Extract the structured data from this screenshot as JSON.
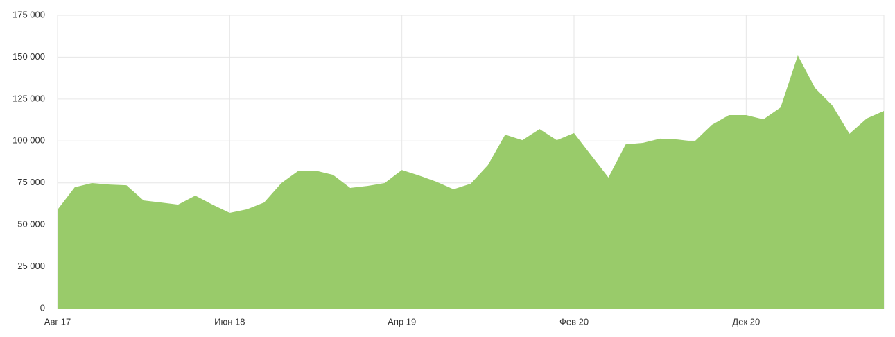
{
  "chart_data": {
    "type": "area",
    "color": "#99cb6a",
    "grid": true,
    "categories": [
      "Авг 17",
      null,
      null,
      null,
      null,
      null,
      null,
      null,
      null,
      null,
      "Июн 18",
      null,
      null,
      null,
      null,
      null,
      null,
      null,
      null,
      null,
      "Апр 19",
      null,
      null,
      null,
      null,
      null,
      null,
      null,
      null,
      null,
      "Фев 20",
      null,
      null,
      null,
      null,
      null,
      null,
      null,
      null,
      null,
      "Дек 20",
      null,
      null,
      null,
      null,
      null,
      null,
      null,
      null
    ],
    "values": [
      59000,
      72400,
      74900,
      74000,
      73600,
      64500,
      63300,
      62000,
      67400,
      62000,
      57100,
      59200,
      63300,
      74900,
      82300,
      82300,
      79800,
      72000,
      73200,
      74900,
      82700,
      79400,
      75700,
      71200,
      74500,
      85600,
      103800,
      100500,
      107100,
      100500,
      104700,
      91400,
      78200,
      98000,
      98900,
      101400,
      100900,
      99700,
      109600,
      115400,
      115400,
      112900,
      120000,
      151000,
      131600,
      121200,
      104300,
      113400,
      117900
    ],
    "ylim": [
      0,
      175000
    ],
    "yticks": [
      0,
      {
        "value": 25000,
        "label": "25 000"
      },
      {
        "value": 50000,
        "label": "50 000"
      },
      {
        "value": 75000,
        "label": "75 000"
      },
      {
        "value": 100000,
        "label": "100 000"
      },
      {
        "value": 125000,
        "label": "125 000"
      },
      {
        "value": 150000,
        "label": "150 000"
      },
      {
        "value": 175000,
        "label": "175 000"
      }
    ]
  }
}
